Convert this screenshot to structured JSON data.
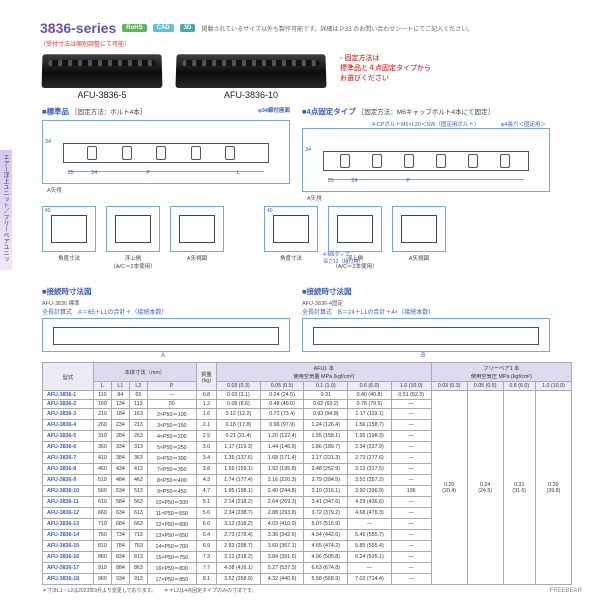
{
  "sidebar": {
    "label": "エアー浮上ユニット／フリーベアユニット"
  },
  "header": {
    "series": "3836-series",
    "badges": {
      "rohs": "RoHS",
      "cad": "CAD",
      "threed": "3D"
    },
    "note": "掲載されているサイズ以外も製作可能です。詳細は P.33 のお問い合わせシートにてご記入ください。",
    "subnote": "（受付寸法は個別調整にて可能）"
  },
  "photos": {
    "left": "AFU-3836-5",
    "right": "AFU-3836-10",
    "fix_note": "固定方法は\n標準品と４点固定タイプから\nお選びください"
  },
  "sections": {
    "std_title": "■標準品",
    "std_sub": "［固定方法：ボルト4本］",
    "four_title": "■4点固定タイプ",
    "four_sub": "［固定方法：M6キャップボルト4本にて固定］",
    "four_callout": "4-CPボルトM6×L20＜SW（固定用ボルト）",
    "dim_label_1": "25",
    "dim_label_2": "24",
    "dim_label_3": "P",
    "dim_label_L": "L",
    "side_label": "34",
    "row_ann": "A矢視",
    "ring_left": "φ34締付座面",
    "ring_right": "φ4長穴＜固定用＞"
  },
  "minis": {
    "a": {
      "cap": "角度寸法",
      "dim": "40"
    },
    "b": {
      "cap": "浮上側\n（A/C＝2本使用）",
      "dim": "57/43"
    },
    "c": {
      "cap": "A矢視図",
      "dim": "16.5"
    },
    "d": {
      "cap": "角度寸法",
      "dim": "40"
    },
    "e": {
      "cap": "浮上側\n（A/C＝2本使用）",
      "dim": "57/43"
    },
    "f": {
      "cap": "A矢視図",
      "dim": "16.5"
    },
    "note": "4-M6タップ\n深さ12（組付用）"
  },
  "connect": {
    "title_l": "■接続時寸法図",
    "sub_l": "AFU-3836 標準",
    "formula_l": "全長計算式　A＝65＋L1の合計＋（接続本数）",
    "title_r": "■接続時寸法図",
    "sub_r": "AFU-3836-4固定",
    "formula_r": "全長計算式　B＝24＋L1の合計＋4×（接続本数）",
    "dim_A": "A",
    "dim_B": "B"
  },
  "table": {
    "headers": {
      "model": "型式",
      "body_grp": "本体寸法（mm）",
      "L": "L",
      "L1": "L1",
      "L2": "L2",
      "P": "P",
      "weight": "質量\n(kg)",
      "afu_grp": "AFU1 本\n使用空気量 MPa (kgf/cm²)",
      "afu_a": "0.03 (0.3)",
      "afu_b": "0.05 (0.5)",
      "afu_c": "0.1 (1.0)",
      "afu_d": "0.6 (6.0)",
      "afu_e": "1.0 (10.0)",
      "fb_grp": "フリーベア1 本\n使用空気圧 MPa (kgf/cm²)",
      "fb_a": "0.03 (0.3)",
      "fb_b": "0.05 (0.5)",
      "fb_c": "0.6 (6.0)",
      "fb_d": "1.0 (10.0)"
    },
    "rows": [
      {
        "m": "AFU-3836-1",
        "L": "110",
        "L1": "84",
        "L2": "65",
        "P": "—",
        "w": "0.8",
        "a": "0.03 (3.1)",
        "b": "0.24 (24.5)",
        "c": "0.31",
        "d": "0.40 (40.8)",
        "e": "0.51 (52.3)"
      },
      {
        "m": "AFU-3836-2",
        "L": "160",
        "L1": "134",
        "L2": "113",
        "P": "50",
        "w": "1.2",
        "a": "0.09 (8.6)",
        "b": "0.48 (49.0)",
        "c": "0.62 (63.2)",
        "d": "0.78 (79.5)",
        "e": "—"
      },
      {
        "m": "AFU-3836-3",
        "L": "210",
        "L1": "184",
        "L2": "163",
        "P": "2×P50＝100",
        "w": "1.6",
        "a": "0.12 (12.2)",
        "b": "0.72 (73.4)",
        "c": "0.93 (94.8)",
        "d": "1.17 (119.1)",
        "e": "—"
      },
      {
        "m": "AFU-3836-4",
        "L": "260",
        "L1": "234",
        "L2": "213",
        "P": "3×P50＝150",
        "w": "2.1",
        "a": "0.18 (17.8)",
        "b": "0.96 (97.9)",
        "c": "1.24 (126.4)",
        "d": "1.56 (158.7)",
        "e": "—"
      },
      {
        "m": "AFU-3836-5",
        "L": "310",
        "L1": "284",
        "L2": "263",
        "P": "4×P50＝200",
        "w": "2.5",
        "a": "0.21 (21.4)",
        "b": "1.20 (122.4)",
        "c": "1.55 (158.1)",
        "d": "1.95 (198.3)",
        "e": "—"
      },
      {
        "m": "AFU-3836-6",
        "L": "360",
        "L1": "334",
        "L2": "313",
        "P": "5×P50＝250",
        "w": "3.0",
        "a": "1.17 (119.3)",
        "b": "1.44 (146.9)",
        "c": "1.86 (189.7)",
        "d": "2.34 (237.9)",
        "e": "—"
      },
      {
        "m": "AFU-3836-7",
        "L": "410",
        "L1": "384",
        "L2": "363",
        "P": "6×P50＝300",
        "w": "3.4",
        "a": "1.35 (137.6)",
        "b": "1.68 (171.4)",
        "c": "2.17 (221.3)",
        "d": "2.73 (277.6)",
        "e": "—"
      },
      {
        "m": "AFU-3836-8",
        "L": "460",
        "L1": "434",
        "L2": "413",
        "P": "7×P50＝350",
        "w": "3.8",
        "a": "1.56 (159.1)",
        "b": "1.92 (195.8)",
        "c": "2.48 (252.9)",
        "d": "3.12 (317.5)",
        "e": "—"
      },
      {
        "m": "AFU-3836-9",
        "L": "510",
        "L1": "484",
        "L2": "463",
        "P": "8×P50＝400",
        "w": "4.3",
        "a": "1.74 (177.4)",
        "b": "2.16 (220.3)",
        "c": "2.79 (284.5)",
        "d": "3.51 (357.2)",
        "e": "—"
      },
      {
        "m": "AFU-3836-10",
        "L": "560",
        "L1": "534",
        "L2": "513",
        "P": "9×P50＝450",
        "w": "4.7",
        "a": "1.95 (198.1)",
        "b": "2.40 (244.8)",
        "c": "3.10 (316.1)",
        "d": "3.90 (396.9)",
        "e": "196"
      },
      {
        "m": "AFU-3836-11",
        "L": "610",
        "L1": "584",
        "L2": "563",
        "P": "10×P50＝500",
        "w": "5.1",
        "a": "2.14 (218.2)",
        "b": "2.64 (269.3)",
        "c": "3.41 (347.6)",
        "d": "4.29 (436.6)",
        "e": "—"
      },
      {
        "m": "AFU-3836-12",
        "L": "660",
        "L1": "634",
        "L2": "613",
        "P": "11×P50＝550",
        "w": "5.6",
        "a": "2.34 (238.7)",
        "b": "2.88 (293.8)",
        "c": "3.72 (379.2)",
        "d": "4.68 (476.3)",
        "e": "—"
      },
      {
        "m": "AFU-3836-13",
        "L": "710",
        "L1": "684",
        "L2": "663",
        "P": "12×P50＝600",
        "w": "6.0",
        "a": "3.12 (318.2)",
        "b": "4.03 (410.9)",
        "c": "5.07 (516.9)",
        "d": "—",
        "e": "—"
      },
      {
        "m": "AFU-3836-14",
        "L": "760",
        "L1": "734",
        "L2": "713",
        "P": "13×P50＝650",
        "w": "6.4",
        "a": "2.73 (278.4)",
        "b": "3.36 (342.6)",
        "c": "4.34 (442.6)",
        "d": "5.46 (555.7)",
        "e": "—"
      },
      {
        "m": "AFU-3836-15",
        "L": "810",
        "L1": "784",
        "L2": "763",
        "P": "14×P50＝700",
        "w": "6.9",
        "a": "2.93 (298.7)",
        "b": "3.60 (367.1)",
        "c": "4.65 (474.2)",
        "d": "5.85 (595.4)",
        "e": "—"
      },
      {
        "m": "AFU-3836-16",
        "L": "860",
        "L1": "834",
        "L2": "813",
        "P": "15×P50＝750",
        "w": "7.3",
        "a": "3.12 (318.2)",
        "b": "3.84 (391.6)",
        "c": "4.96 (505.8)",
        "d": "6.24 (635.1)",
        "e": "—"
      },
      {
        "m": "AFU-3836-17",
        "L": "910",
        "L1": "884",
        "L2": "863",
        "P": "16×P50＝800",
        "w": "7.7",
        "a": "4.08 (416.1)",
        "b": "5.27 (537.3)",
        "c": "6.63 (674.8)",
        "d": "—",
        "e": "—"
      },
      {
        "m": "AFU-3836-18",
        "L": "960",
        "L1": "934",
        "L2": "913",
        "P": "17×P50＝850",
        "w": "8.1",
        "a": "3.52 (358.9)",
        "b": "4.32 (440.6)",
        "c": "5.58 (568.9)",
        "d": "7.02 (714.4)",
        "e": "—"
      }
    ],
    "freebearing": {
      "a": "0.20\n(20.4)",
      "b": "0.24\n(24.5)",
      "c": "0.31\n(31.6)",
      "d": "0.39\n(39.8)"
    },
    "footnote_l": "＊寸法L1・L2は2023年9月より変更しております。",
    "footnote_r": "＊＊L2は4点固定タイプのみの寸法です。"
  },
  "pageno": "FREEBEAR"
}
